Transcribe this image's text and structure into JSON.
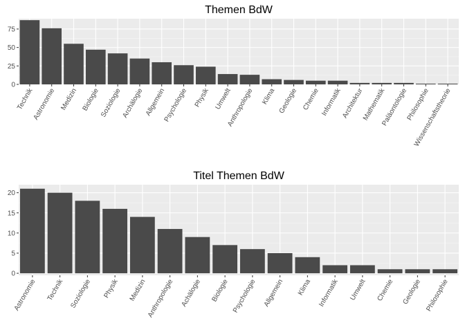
{
  "chart_data": [
    {
      "type": "bar",
      "title": "Themen BdW",
      "xlabel": "",
      "ylabel": "",
      "categories": [
        "Technik",
        "Astronomie",
        "Medizin",
        "Biologie",
        "Soziologie",
        "Archälogie",
        "Allgemein",
        "Psychologie",
        "Physik",
        "Umwelt",
        "Anthropologie",
        "Klima",
        "Geologie",
        "Chemie",
        "Informatik",
        "Architektur",
        "Mathematik",
        "Paläontologie",
        "Philosophie",
        "Wissenschaftstheorie"
      ],
      "values": [
        87,
        76,
        55,
        47,
        42,
        35,
        30,
        26,
        24,
        14,
        13,
        7,
        6,
        5,
        5,
        2,
        2,
        2,
        1,
        1
      ],
      "ylim": [
        0,
        89
      ],
      "yticks": [
        0,
        25,
        50,
        75
      ],
      "bar_color": "#4a4a4a",
      "panel_color": "#ebebeb",
      "grid": true
    },
    {
      "type": "bar",
      "title": "Titel Themen BdW",
      "xlabel": "",
      "ylabel": "",
      "categories": [
        "Astronomie",
        "Technik",
        "Soziologie",
        "Physik",
        "Medizin",
        "Anthropologie",
        "Achälogie",
        "Biologie",
        "Psychologie",
        "Allgemein",
        "Klima",
        "Informatik",
        "Umwelt",
        "Chemie",
        "Geologie",
        "Philosophie"
      ],
      "values": [
        21,
        20,
        18,
        16,
        14,
        11,
        9,
        7,
        6,
        5,
        4,
        2,
        2,
        1,
        1,
        1
      ],
      "ylim": [
        -0.5,
        22
      ],
      "yticks": [
        0,
        5,
        10,
        15,
        20
      ],
      "bar_color": "#4a4a4a",
      "panel_color": "#ebebeb",
      "grid": true
    }
  ]
}
